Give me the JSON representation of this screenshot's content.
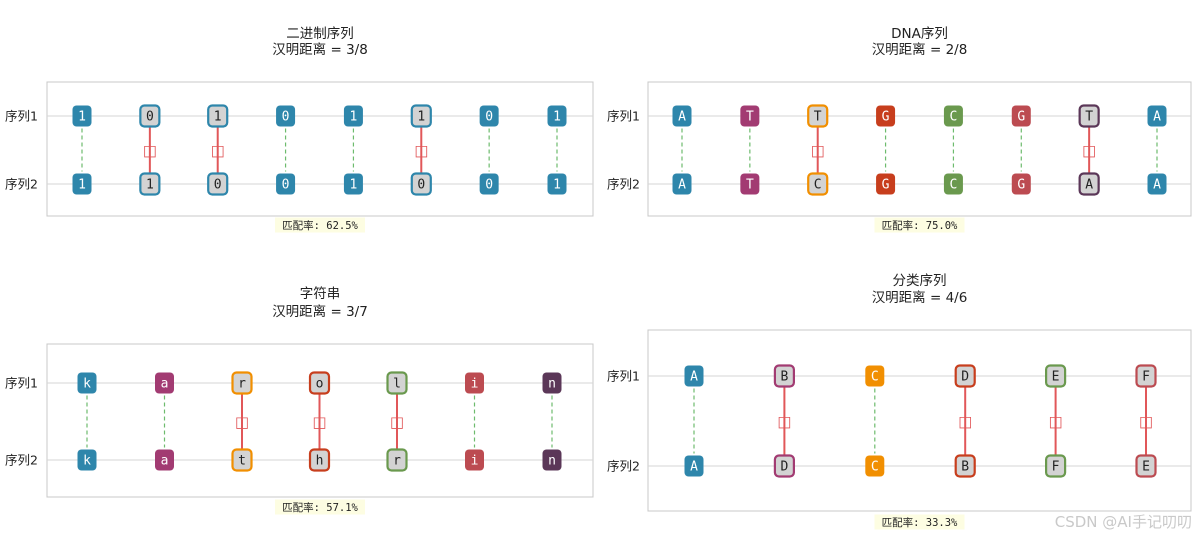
{
  "row_labels": [
    "序列1",
    "序列2"
  ],
  "mismatch_marker": "□",
  "watermark": "CSDN @AI手记叨叨",
  "colors": {
    "match_line": "#6dbb6d",
    "mismatch_line": "#e15759",
    "mismatch_fill": "#d3d3d3",
    "rate_bg": "#fdfde2",
    "frame": "#c8c8c8",
    "grid": "#d6d6d6",
    "text_dark": "#222222",
    "text_light": "#ffffff"
  },
  "chart_data": [
    {
      "type": "table",
      "title": "二进制序列",
      "subtitle": "汉明距离 = 3/8",
      "seq1": [
        "1",
        "0",
        "1",
        "0",
        "1",
        "1",
        "0",
        "1"
      ],
      "seq2": [
        "1",
        "1",
        "0",
        "0",
        "1",
        "0",
        "0",
        "1"
      ],
      "match": [
        true,
        false,
        false,
        true,
        true,
        false,
        true,
        true
      ],
      "colors": [
        "#2e86ab",
        "#2e86ab",
        "#2e86ab",
        "#2e86ab",
        "#2e86ab",
        "#2e86ab",
        "#2e86ab",
        "#2e86ab"
      ],
      "rate_label": "匹配率: 62.5%"
    },
    {
      "type": "table",
      "title": "DNA序列",
      "subtitle": "汉明距离 = 2/8",
      "seq1": [
        "A",
        "T",
        "T",
        "G",
        "C",
        "G",
        "T",
        "A"
      ],
      "seq2": [
        "A",
        "T",
        "C",
        "G",
        "C",
        "G",
        "A",
        "A"
      ],
      "match": [
        true,
        true,
        false,
        true,
        true,
        true,
        false,
        true
      ],
      "colors": [
        "#2e86ab",
        "#a23b72",
        "#f18f01",
        "#c73e1d",
        "#6a994e",
        "#bc4b51",
        "#5b3758",
        "#2e86ab"
      ],
      "rate_label": "匹配率: 75.0%"
    },
    {
      "type": "table",
      "title": "字符串",
      "subtitle": "汉明距离 = 3/7",
      "seq1": [
        "k",
        "a",
        "r",
        "o",
        "l",
        "i",
        "n"
      ],
      "seq2": [
        "k",
        "a",
        "t",
        "h",
        "r",
        "i",
        "n"
      ],
      "match": [
        true,
        true,
        false,
        false,
        false,
        true,
        true
      ],
      "colors": [
        "#2e86ab",
        "#a23b72",
        "#f18f01",
        "#c73e1d",
        "#6a994e",
        "#bc4b51",
        "#5b3758"
      ],
      "rate_label": "匹配率: 57.1%"
    },
    {
      "type": "table",
      "title": "分类序列",
      "subtitle": "汉明距离 = 4/6",
      "seq1": [
        "A",
        "B",
        "C",
        "D",
        "E",
        "F"
      ],
      "seq2": [
        "A",
        "D",
        "C",
        "B",
        "F",
        "E"
      ],
      "match": [
        true,
        false,
        true,
        false,
        false,
        false
      ],
      "colors": [
        "#2e86ab",
        "#a23b72",
        "#f18f01",
        "#c73e1d",
        "#6a994e",
        "#bc4b51"
      ],
      "rate_label": "匹配率: 33.3%"
    }
  ]
}
